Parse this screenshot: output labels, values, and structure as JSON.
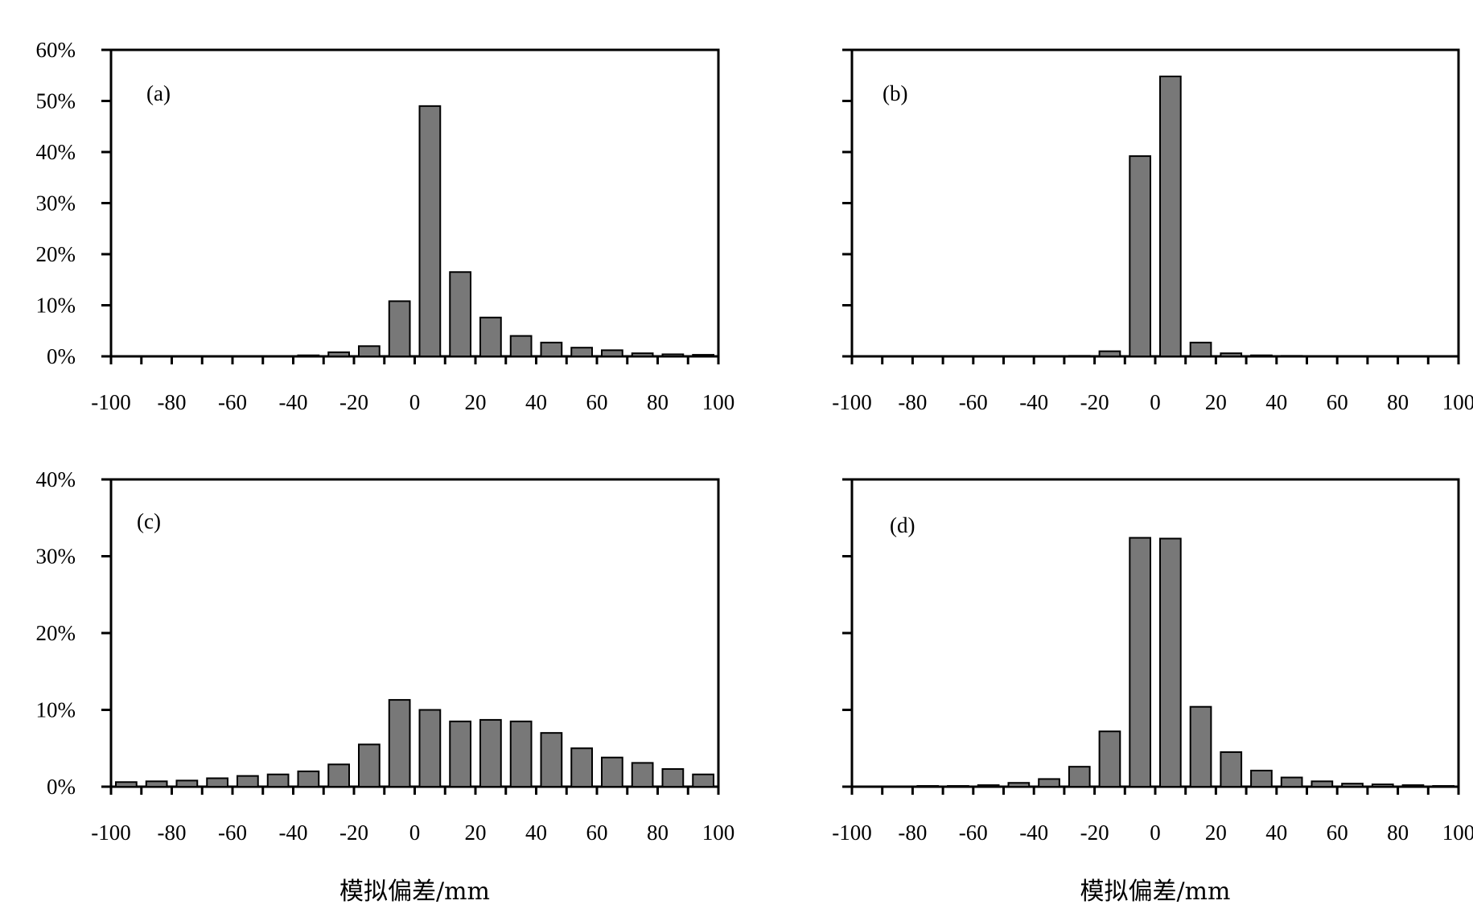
{
  "chart_data": [
    {
      "type": "bar",
      "panel_label": "(a)",
      "x": [
        -95,
        -85,
        -75,
        -65,
        -55,
        -45,
        -35,
        -25,
        -15,
        -5,
        5,
        15,
        25,
        35,
        45,
        55,
        65,
        75,
        85,
        95
      ],
      "values": [
        0.0,
        0.0,
        0.0,
        0.0,
        0.0,
        0.0,
        0.2,
        0.8,
        2.0,
        10.8,
        49.0,
        16.5,
        7.6,
        4.0,
        2.7,
        1.7,
        1.2,
        0.6,
        0.4,
        0.3
      ],
      "xlim": [
        -100,
        100
      ],
      "ylim": [
        0,
        60
      ],
      "x_ticks": [
        -100,
        -80,
        -60,
        -40,
        -20,
        0,
        20,
        40,
        60,
        80,
        100
      ],
      "x_tick_labels": [
        "-100",
        "-80",
        "-60",
        "-40",
        "-20",
        "0",
        "20",
        "40",
        "60",
        "80",
        "100"
      ],
      "y_ticks": [
        0,
        10,
        20,
        30,
        40,
        50,
        60
      ],
      "y_tick_labels": [
        "0%",
        "10%",
        "20%",
        "30%",
        "40%",
        "50%",
        "60%"
      ],
      "xlabel": "",
      "ylabel": "",
      "bar_color": "#787878"
    },
    {
      "type": "bar",
      "panel_label": "(b)",
      "x": [
        -95,
        -85,
        -75,
        -65,
        -55,
        -45,
        -35,
        -25,
        -15,
        -5,
        5,
        15,
        25,
        35,
        45,
        55,
        65,
        75,
        85,
        95
      ],
      "values": [
        0.0,
        0.0,
        0.0,
        0.0,
        0.0,
        0.0,
        0.0,
        0.1,
        1.0,
        39.2,
        54.8,
        2.7,
        0.6,
        0.2,
        0.1,
        0.0,
        0.0,
        0.0,
        0.0,
        0.0
      ],
      "xlim": [
        -100,
        100
      ],
      "ylim": [
        0,
        60
      ],
      "x_ticks": [
        -100,
        -80,
        -60,
        -40,
        -20,
        0,
        20,
        40,
        60,
        80,
        100
      ],
      "x_tick_labels": [
        "-100",
        "-80",
        "-60",
        "-40",
        "-20",
        "0",
        "20",
        "40",
        "60",
        "80",
        "100"
      ],
      "y_ticks": [
        0,
        10,
        20,
        30,
        40,
        50,
        60
      ],
      "y_tick_labels": [],
      "xlabel": "",
      "ylabel": "",
      "bar_color": "#787878"
    },
    {
      "type": "bar",
      "panel_label": "(c)",
      "x": [
        -95,
        -85,
        -75,
        -65,
        -55,
        -45,
        -35,
        -25,
        -15,
        -5,
        5,
        15,
        25,
        35,
        45,
        55,
        65,
        75,
        85,
        95
      ],
      "values": [
        0.6,
        0.7,
        0.8,
        1.1,
        1.4,
        1.6,
        2.0,
        2.9,
        5.5,
        11.3,
        10.0,
        8.5,
        8.7,
        8.5,
        7.0,
        5.0,
        3.8,
        3.1,
        2.3,
        1.6
      ],
      "xlim": [
        -100,
        100
      ],
      "ylim": [
        0,
        40
      ],
      "x_ticks": [
        -100,
        -80,
        -60,
        -40,
        -20,
        0,
        20,
        40,
        60,
        80,
        100
      ],
      "x_tick_labels": [
        "-100",
        "-80",
        "-60",
        "-40",
        "-20",
        "0",
        "20",
        "40",
        "60",
        "80",
        "100"
      ],
      "y_ticks": [
        0,
        10,
        20,
        30,
        40
      ],
      "y_tick_labels": [
        "0%",
        "10%",
        "20%",
        "30%",
        "40%"
      ],
      "xlabel": "模拟偏差/mm",
      "ylabel": "",
      "bar_color": "#787878"
    },
    {
      "type": "bar",
      "panel_label": "(d)",
      "x": [
        -95,
        -85,
        -75,
        -65,
        -55,
        -45,
        -35,
        -25,
        -15,
        -5,
        5,
        15,
        25,
        35,
        45,
        55,
        65,
        75,
        85,
        95
      ],
      "values": [
        0.0,
        0.0,
        0.1,
        0.1,
        0.2,
        0.5,
        1.0,
        2.6,
        7.2,
        32.4,
        32.3,
        10.4,
        4.5,
        2.1,
        1.2,
        0.7,
        0.4,
        0.3,
        0.2,
        0.1
      ],
      "xlim": [
        -100,
        100
      ],
      "ylim": [
        0,
        40
      ],
      "x_ticks": [
        -100,
        -80,
        -60,
        -40,
        -20,
        0,
        20,
        40,
        60,
        80,
        100
      ],
      "x_tick_labels": [
        "-100",
        "-80",
        "-60",
        "-40",
        "-20",
        "0",
        "20",
        "40",
        "60",
        "80",
        "100"
      ],
      "y_ticks": [
        0,
        10,
        20,
        30,
        40
      ],
      "y_tick_labels": [],
      "xlabel": "模拟偏差/mm",
      "ylabel": "",
      "bar_color": "#787878"
    }
  ]
}
